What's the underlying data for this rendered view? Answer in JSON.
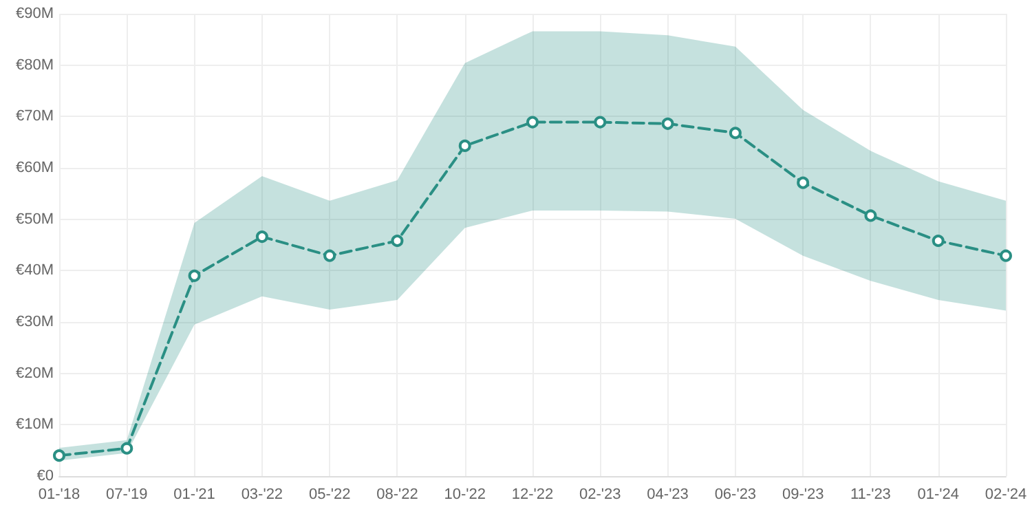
{
  "chart_data": {
    "type": "line",
    "categories": [
      "01-'18",
      "07-'19",
      "01-'21",
      "03-'22",
      "05-'22",
      "08-'22",
      "10-'22",
      "12-'22",
      "02-'23",
      "04-'23",
      "06-'23",
      "09-'23",
      "11-'23",
      "01-'24",
      "02-'24"
    ],
    "series": [
      {
        "color": "#2a8f84",
        "values": [
          4.0,
          5.4,
          39.0,
          46.6,
          42.9,
          45.8,
          64.3,
          68.9,
          68.9,
          68.6,
          66.8,
          57.1,
          50.7,
          45.8,
          42.9
        ],
        "lower": [
          3.0,
          4.5,
          29.5,
          35.0,
          32.4,
          34.3,
          48.3,
          51.7,
          51.7,
          51.5,
          50.1,
          42.9,
          38.0,
          34.3,
          32.2
        ],
        "upper": [
          5.5,
          7.0,
          49.3,
          58.4,
          53.6,
          57.6,
          80.4,
          86.6,
          86.6,
          85.8,
          83.6,
          71.3,
          63.3,
          57.4,
          53.6
        ]
      }
    ],
    "ylim": [
      0,
      90
    ],
    "yticks": [
      {
        "value": 0,
        "label": "€0"
      },
      {
        "value": 10,
        "label": "€10M"
      },
      {
        "value": 20,
        "label": "€20M"
      },
      {
        "value": 30,
        "label": "€30M"
      },
      {
        "value": 40,
        "label": "€40M"
      },
      {
        "value": 50,
        "label": "€50M"
      },
      {
        "value": 60,
        "label": "€60M"
      },
      {
        "value": 70,
        "label": "€70M"
      },
      {
        "value": 80,
        "label": "€80M"
      },
      {
        "value": 90,
        "label": "€90M"
      }
    ],
    "grid": true,
    "marker": "circle",
    "line_style": "dashed"
  }
}
